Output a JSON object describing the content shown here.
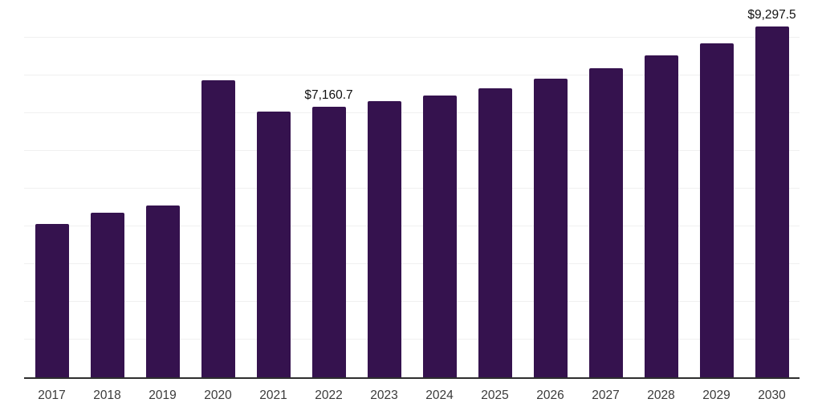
{
  "chart_data": {
    "type": "bar",
    "title": "",
    "xlabel": "",
    "ylabel": "",
    "categories": [
      "2017",
      "2018",
      "2019",
      "2020",
      "2021",
      "2022",
      "2023",
      "2024",
      "2025",
      "2026",
      "2027",
      "2028",
      "2029",
      "2030"
    ],
    "values": [
      4070,
      4360,
      4560,
      7870,
      7040,
      7160.7,
      7320,
      7470,
      7670,
      7920,
      8190,
      8530,
      8860,
      9297.5
    ],
    "ylim": [
      0,
      10000
    ],
    "gridline_step": 1000,
    "grid": "horizontal-only",
    "legend": "none",
    "data_labels": [
      {
        "category": "2022",
        "text": "$7,160.7"
      },
      {
        "category": "2030",
        "text": "$9,297.5"
      }
    ]
  },
  "colors": {
    "bar": "#35124E",
    "gridline": "#f0f0f0",
    "axis_line": "#2e2e2e",
    "tick_label": "#3a3a3a",
    "data_label": "#111111",
    "background": "#ffffff"
  }
}
